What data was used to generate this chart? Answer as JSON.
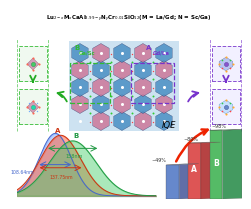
{
  "title_text": "Lu$_{2-x}$M$_x$CaAl$_{3.99-y}$N$_y$Cr$_{0.01}$SiO$_{12}$(M = La/Gd; N = Sc/Ga)",
  "bg_color": "#f5f0f0",
  "crystal_bg": "#c8dff0",
  "blue_poly": "#4a8fc4",
  "pink_poly": "#cc7799",
  "white_atom": "#ffffff",
  "green_atom": "#44cc44",
  "red_atom": "#ff4444",
  "bar_vals": [
    49,
    80,
    98
  ],
  "bar_colors": [
    "#6688cc",
    "#dd5555",
    "#55bb66"
  ],
  "bar_dark": [
    "#445599",
    "#aa2222",
    "#228844"
  ],
  "bar_top": [
    "#7799dd",
    "#ee7777",
    "#77cc88"
  ],
  "pct_labels": [
    "~49%",
    "~80%",
    "~98%"
  ],
  "iqe_color": "#cc2200",
  "spec_mu_base": 790,
  "spec_sigma_base": 46,
  "spec_mu_A": 805,
  "spec_sigma_A": 58,
  "spec_mu_B": 840,
  "spec_sigma_B": 67,
  "fwhm_base": "108.64nm",
  "fwhm_A": "137.75nm",
  "fwhm_B": "158nm",
  "green_dash_color": "#33bb33",
  "purple_dash_color": "#7733cc",
  "arrow_green": "#22aa22",
  "arrow_purple": "#7733cc"
}
